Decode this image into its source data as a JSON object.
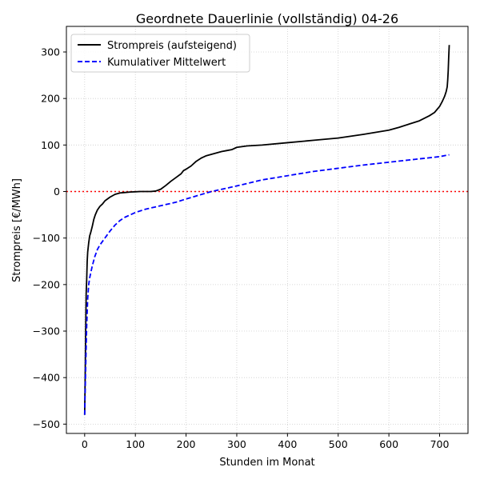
{
  "chart_data": {
    "type": "line",
    "title": "Geordnete Dauerlinie (vollständig) 04-26",
    "xlabel": "Stunden im Monat",
    "ylabel": "Strompreis [€/MWh]",
    "xlim": [
      -36,
      756
    ],
    "ylim": [
      -520,
      355
    ],
    "xticks": [
      0,
      100,
      200,
      300,
      400,
      500,
      600,
      700
    ],
    "xtick_labels": [
      "0",
      "100",
      "200",
      "300",
      "400",
      "500",
      "600",
      "700"
    ],
    "yticks": [
      -500,
      -400,
      -300,
      -200,
      -100,
      0,
      100,
      200,
      300
    ],
    "ytick_labels": [
      "−500",
      "−400",
      "−300",
      "−200",
      "−100",
      "0",
      "100",
      "200",
      "300"
    ],
    "grid": true,
    "legend_position": "top-left",
    "reference_line": {
      "y": 0,
      "color": "#ff0000",
      "style": "dotted"
    },
    "series": [
      {
        "name": "Strompreis (aufsteigend)",
        "color": "#000000",
        "style": "solid",
        "x": [
          0,
          1,
          2,
          3,
          4,
          5,
          6,
          8,
          10,
          12,
          15,
          18,
          21,
          25,
          30,
          35,
          40,
          50,
          60,
          70,
          80,
          90,
          100,
          110,
          120,
          130,
          140,
          150,
          160,
          170,
          180,
          190,
          195,
          200,
          210,
          220,
          230,
          240,
          250,
          260,
          270,
          280,
          290,
          300,
          320,
          350,
          400,
          450,
          500,
          550,
          600,
          620,
          640,
          660,
          680,
          690,
          700,
          705,
          710,
          713,
          715,
          716,
          717,
          718,
          719
        ],
        "y": [
          -480,
          -400,
          -300,
          -220,
          -190,
          -150,
          -130,
          -110,
          -95,
          -88,
          -75,
          -60,
          -50,
          -40,
          -32,
          -27,
          -20,
          -12,
          -6,
          -3,
          -2,
          -1,
          -0.5,
          0,
          0,
          0,
          1,
          5,
          13,
          22,
          30,
          38,
          45,
          48,
          55,
          65,
          72,
          77,
          80,
          83,
          86,
          88,
          90,
          95,
          98,
          100,
          105,
          110,
          115,
          123,
          132,
          138,
          145,
          152,
          163,
          170,
          183,
          193,
          205,
          215,
          225,
          240,
          260,
          290,
          315
        ]
      },
      {
        "name": "Kumulativer Mittelwert",
        "color": "#0000ff",
        "style": "dashed",
        "x": [
          0,
          2,
          4,
          6,
          8,
          10,
          15,
          20,
          25,
          30,
          40,
          50,
          60,
          70,
          80,
          100,
          120,
          140,
          160,
          180,
          200,
          250,
          300,
          350,
          400,
          450,
          500,
          550,
          600,
          650,
          700,
          719
        ],
        "y": [
          -480,
          -380,
          -290,
          -230,
          -200,
          -185,
          -160,
          -140,
          -125,
          -115,
          -100,
          -85,
          -72,
          -62,
          -55,
          -45,
          -38,
          -33,
          -28,
          -23,
          -16,
          0,
          12,
          25,
          34,
          43,
          50,
          57,
          63,
          69,
          75,
          79
        ]
      }
    ]
  }
}
